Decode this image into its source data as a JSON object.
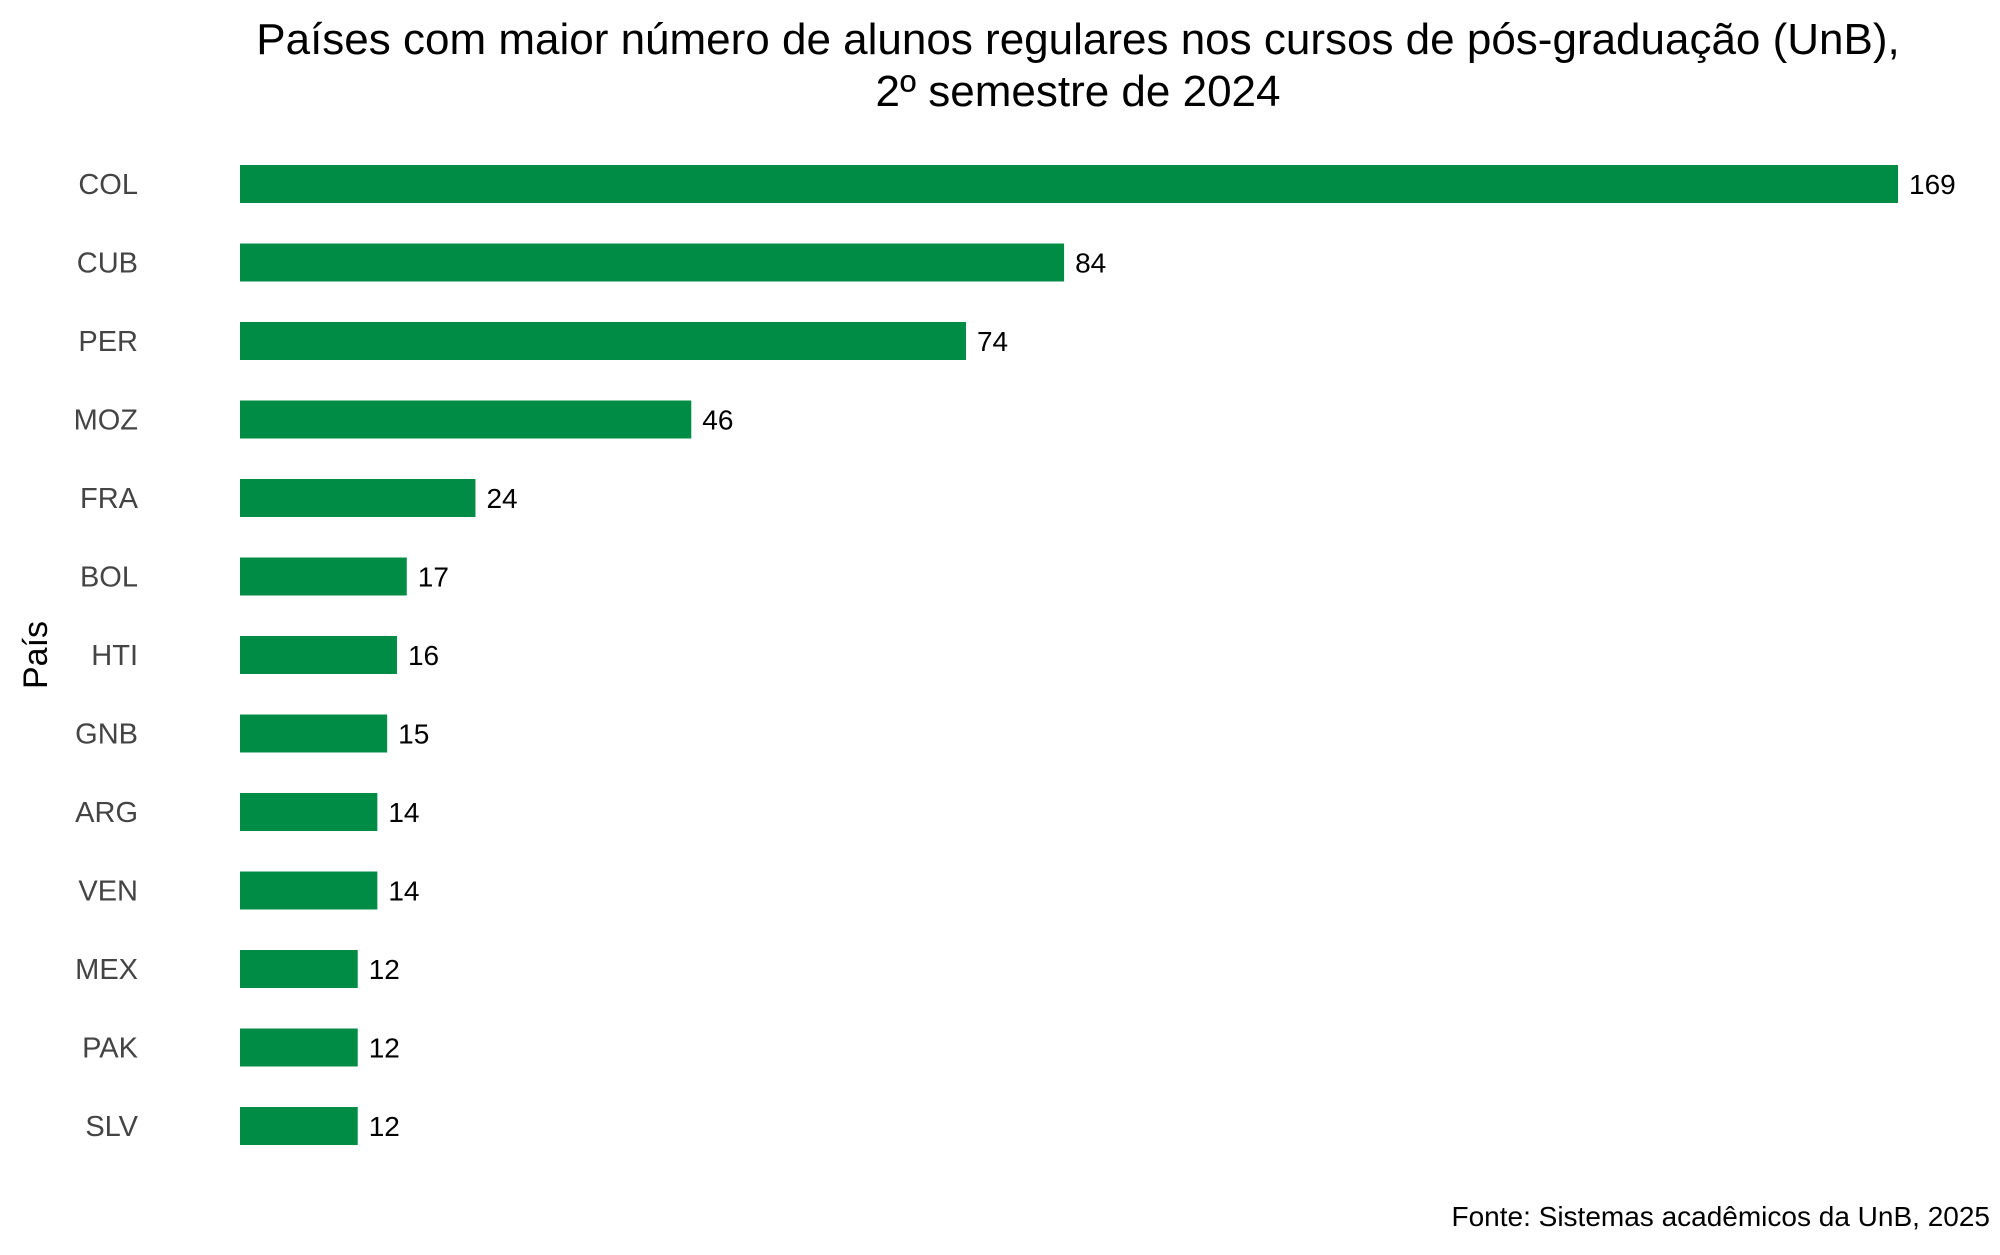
{
  "chart_data": {
    "type": "bar",
    "orientation": "horizontal",
    "title": "Países com maior número de alunos regulares nos cursos de pós-graduação (UnB),",
    "subtitle": "2º semestre de 2024",
    "ylabel": "País",
    "xlabel": "",
    "caption": "Fonte: Sistemas acadêmicos da UnB, 2025",
    "categories": [
      "COL",
      "CUB",
      "PER",
      "MOZ",
      "FRA",
      "BOL",
      "HTI",
      "GNB",
      "ARG",
      "VEN",
      "MEX",
      "PAK",
      "SLV"
    ],
    "values": [
      169,
      84,
      74,
      46,
      24,
      17,
      16,
      15,
      14,
      14,
      12,
      12,
      12
    ],
    "xlim": [
      0,
      169
    ],
    "grid": false,
    "legend": "none",
    "bar_color": "#008C45"
  }
}
